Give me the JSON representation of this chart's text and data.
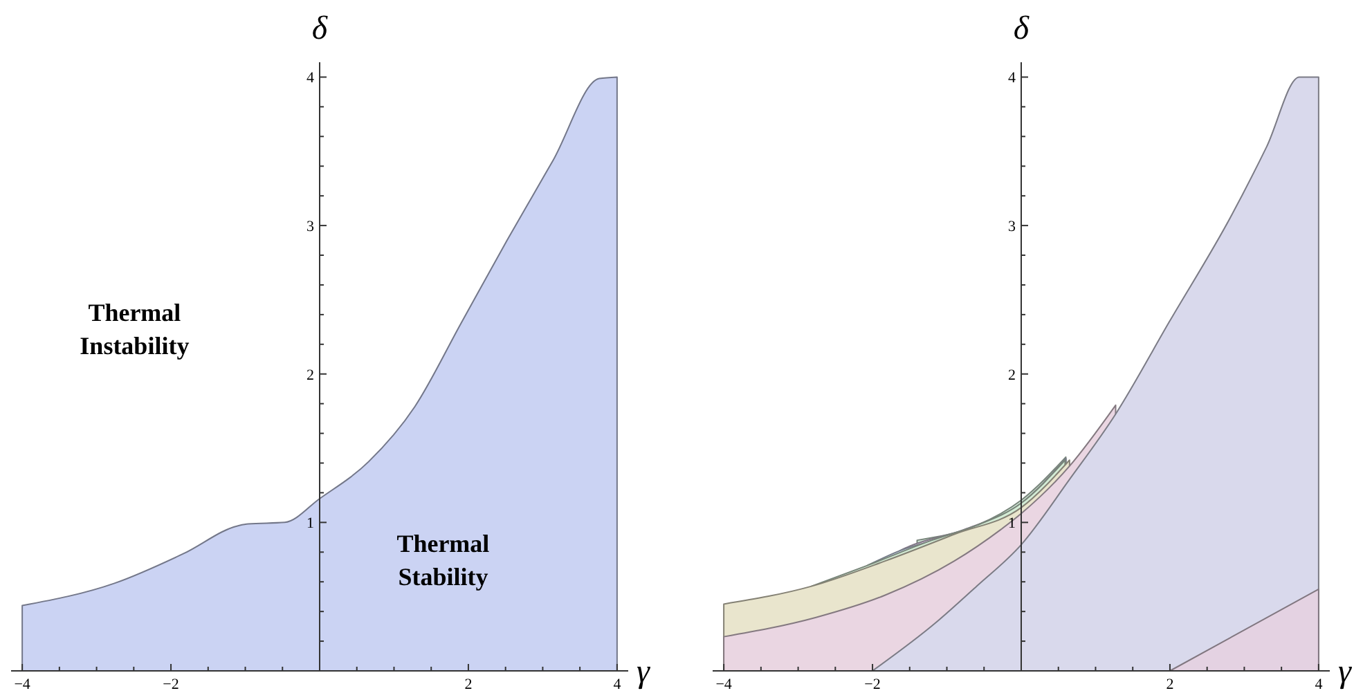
{
  "chart_data": [
    {
      "type": "area",
      "xlabel": "γ",
      "ylabel": "δ",
      "xlim": [
        -4.15,
        4.15
      ],
      "ylim": [
        0,
        4.1
      ],
      "xticks": [
        {
          "value": -4,
          "label": "−4"
        },
        {
          "value": -3.5,
          "label": null
        },
        {
          "value": -3,
          "label": null
        },
        {
          "value": -2.5,
          "label": null
        },
        {
          "value": -2,
          "label": "−2"
        },
        {
          "value": -1.5,
          "label": null
        },
        {
          "value": -1,
          "label": null
        },
        {
          "value": -0.5,
          "label": null
        },
        {
          "value": 0.5,
          "label": null
        },
        {
          "value": 1,
          "label": null
        },
        {
          "value": 1.5,
          "label": null
        },
        {
          "value": 2,
          "label": "2"
        },
        {
          "value": 2.5,
          "label": null
        },
        {
          "value": 3,
          "label": null
        },
        {
          "value": 3.5,
          "label": null
        },
        {
          "value": 4,
          "label": "4"
        }
      ],
      "yticks": [
        {
          "value": 0.2,
          "label": null
        },
        {
          "value": 0.4,
          "label": null
        },
        {
          "value": 0.6,
          "label": null
        },
        {
          "value": 0.8,
          "label": null
        },
        1,
        {
          "value": 1.2,
          "label": null
        },
        {
          "value": 1.4,
          "label": null
        },
        {
          "value": 1.6,
          "label": null
        },
        {
          "value": 1.8,
          "label": null
        },
        2,
        {
          "value": 2.2,
          "label": null
        },
        {
          "value": 2.4,
          "label": null
        },
        {
          "value": 2.6,
          "label": null
        },
        {
          "value": 2.8,
          "label": null
        },
        3,
        {
          "value": 3.2,
          "label": null
        },
        {
          "value": 3.4,
          "label": null
        },
        {
          "value": 3.6,
          "label": null
        },
        {
          "value": 3.8,
          "label": null
        },
        4
      ],
      "series": [
        {
          "color": "#cbd3f3",
          "x": [
            -4,
            -2.76,
            -1.83,
            -1.08,
            -0.96,
            -0.47,
            0,
            0.66,
            1.28,
            1.9,
            2.52,
            3.14,
            3.76,
            4
          ],
          "values": [
            0.44,
            0.59,
            0.79,
            0.98,
            0.99,
            1.0,
            1.16,
            1.41,
            1.78,
            2.34,
            2.9,
            3.44,
            3.99,
            4
          ]
        }
      ],
      "annotations": [
        "Thermal Instability",
        "Thermal Stability"
      ]
    },
    {
      "type": "area",
      "xlabel": "γ",
      "ylabel": "δ",
      "xlim": [
        -4.15,
        4.15
      ],
      "ylim": [
        0,
        4.1
      ],
      "xticks": [
        {
          "value": -4,
          "label": "−4"
        },
        {
          "value": -3.5,
          "label": null
        },
        {
          "value": -3,
          "label": null
        },
        {
          "value": -2.5,
          "label": null
        },
        {
          "value": -2,
          "label": "−2"
        },
        {
          "value": -1.5,
          "label": null
        },
        {
          "value": -1,
          "label": null
        },
        {
          "value": -0.5,
          "label": null
        },
        {
          "value": 0.5,
          "label": null
        },
        {
          "value": 1,
          "label": null
        },
        {
          "value": 1.5,
          "label": null
        },
        2,
        {
          "value": 2.5,
          "label": null
        },
        {
          "value": 3,
          "label": null
        },
        {
          "value": 3.5,
          "label": null
        },
        4
      ],
      "yticks": [
        {
          "value": 0.2,
          "label": null
        },
        {
          "value": 0.4,
          "label": null
        },
        {
          "value": 0.6,
          "label": null
        },
        {
          "value": 0.8,
          "label": null
        },
        1,
        {
          "value": 1.2,
          "label": null
        },
        {
          "value": 1.4,
          "label": null
        },
        {
          "value": 1.6,
          "label": null
        },
        {
          "value": 1.8,
          "label": null
        },
        2,
        {
          "value": 2.2,
          "label": null
        },
        {
          "value": 2.4,
          "label": null
        },
        {
          "value": 2.6,
          "label": null
        },
        {
          "value": 2.8,
          "label": null
        },
        3,
        {
          "value": 3.2,
          "label": null
        },
        {
          "value": 3.4,
          "label": null
        },
        {
          "value": 3.6,
          "label": null
        },
        {
          "value": 3.8,
          "label": null
        },
        4
      ],
      "series": [
        {
          "color": "#d2ead8",
          "x": [
            -1.4,
            -0.6,
            0,
            0.6
          ],
          "values": [
            0.88,
            0.98,
            1.15,
            1.44
          ]
        },
        {
          "color": "#e2d0ea",
          "x": [
            -1.63,
            -1.5,
            -0.78,
            0,
            0.6
          ],
          "values": [
            0.81,
            0.84,
            0.95,
            1.13,
            1.43
          ]
        },
        {
          "color": "#d0dcf0",
          "x": [
            -2.07,
            -1.63,
            -0.9,
            0,
            0.6
          ],
          "values": [
            0.71,
            0.81,
            0.92,
            1.12,
            1.43
          ]
        },
        {
          "color": "#d4ecd6",
          "x": [
            -2.82,
            -2.07,
            -1.2,
            -0.6,
            0,
            0.59
          ],
          "values": [
            0.57,
            0.71,
            0.88,
            0.98,
            1.13,
            1.42
          ]
        },
        {
          "color": "#e9e5cd",
          "x": [
            -4,
            -2.82,
            -1.83,
            -0.9,
            0,
            0.65
          ],
          "values": [
            0.45,
            0.57,
            0.74,
            0.92,
            1.1,
            1.42
          ]
        },
        {
          "color": "#ead6e2",
          "x": [
            -4,
            -2.76,
            -1.83,
            -0.9,
            -0.28,
            0,
            0.65,
            1.27
          ],
          "values": [
            0.23,
            0.36,
            0.51,
            0.74,
            0.95,
            1.06,
            1.38,
            1.79
          ]
        },
        {
          "color": "#d9d9ec",
          "x": [
            -2,
            -1.16,
            -0.6,
            0,
            0.65,
            1.27,
            1.99,
            2.83,
            3.3,
            3.74,
            4
          ],
          "values": [
            0,
            0.32,
            0.57,
            0.85,
            1.29,
            1.73,
            2.35,
            3.07,
            3.53,
            4,
            4
          ]
        },
        {
          "color": "#e4d2e2",
          "x": [
            2,
            4
          ],
          "values": [
            0,
            0.55
          ]
        }
      ]
    }
  ]
}
